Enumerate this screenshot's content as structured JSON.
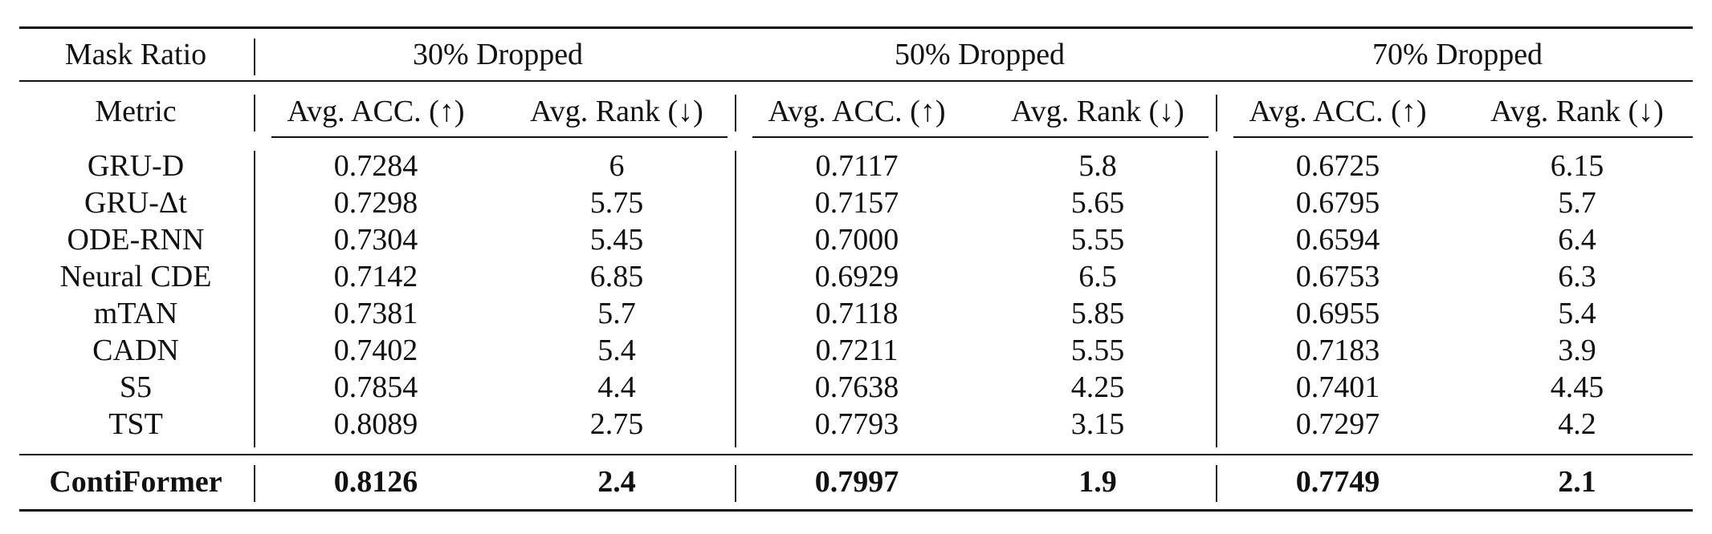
{
  "table": {
    "mask_ratio_label": "Mask Ratio",
    "metric_label": "Metric",
    "groups": [
      "30% Dropped",
      "50% Dropped",
      "70% Dropped"
    ],
    "metrics": [
      "Avg. ACC. (↑)",
      "Avg. Rank (↓)",
      "Avg. ACC. (↑)",
      "Avg. Rank (↓)",
      "Avg. ACC. (↑)",
      "Avg. Rank (↓)"
    ],
    "rows": [
      {
        "model": "GRU-D",
        "values": [
          "0.7284",
          "6",
          "0.7117",
          "5.8",
          "0.6725",
          "6.15"
        ]
      },
      {
        "model": "GRU-Δt",
        "values": [
          "0.7298",
          "5.75",
          "0.7157",
          "5.65",
          "0.6795",
          "5.7"
        ]
      },
      {
        "model": "ODE-RNN",
        "values": [
          "0.7304",
          "5.45",
          "0.7000",
          "5.55",
          "0.6594",
          "6.4"
        ]
      },
      {
        "model": "Neural CDE",
        "values": [
          "0.7142",
          "6.85",
          "0.6929",
          "6.5",
          "0.6753",
          "6.3"
        ]
      },
      {
        "model": "mTAN",
        "values": [
          "0.7381",
          "5.7",
          "0.7118",
          "5.85",
          "0.6955",
          "5.4"
        ]
      },
      {
        "model": "CADN",
        "values": [
          "0.7402",
          "5.4",
          "0.7211",
          "5.55",
          "0.7183",
          "3.9"
        ]
      },
      {
        "model": "S5",
        "values": [
          "0.7854",
          "4.4",
          "0.7638",
          "4.25",
          "0.7401",
          "4.45"
        ]
      },
      {
        "model": "TST",
        "values": [
          "0.8089",
          "2.75",
          "0.7793",
          "3.15",
          "0.7297",
          "4.2"
        ]
      }
    ],
    "final_row": {
      "model": "ContiFormer",
      "values": [
        "0.8126",
        "2.4",
        "0.7997",
        "1.9",
        "0.7749",
        "2.1"
      ]
    }
  }
}
